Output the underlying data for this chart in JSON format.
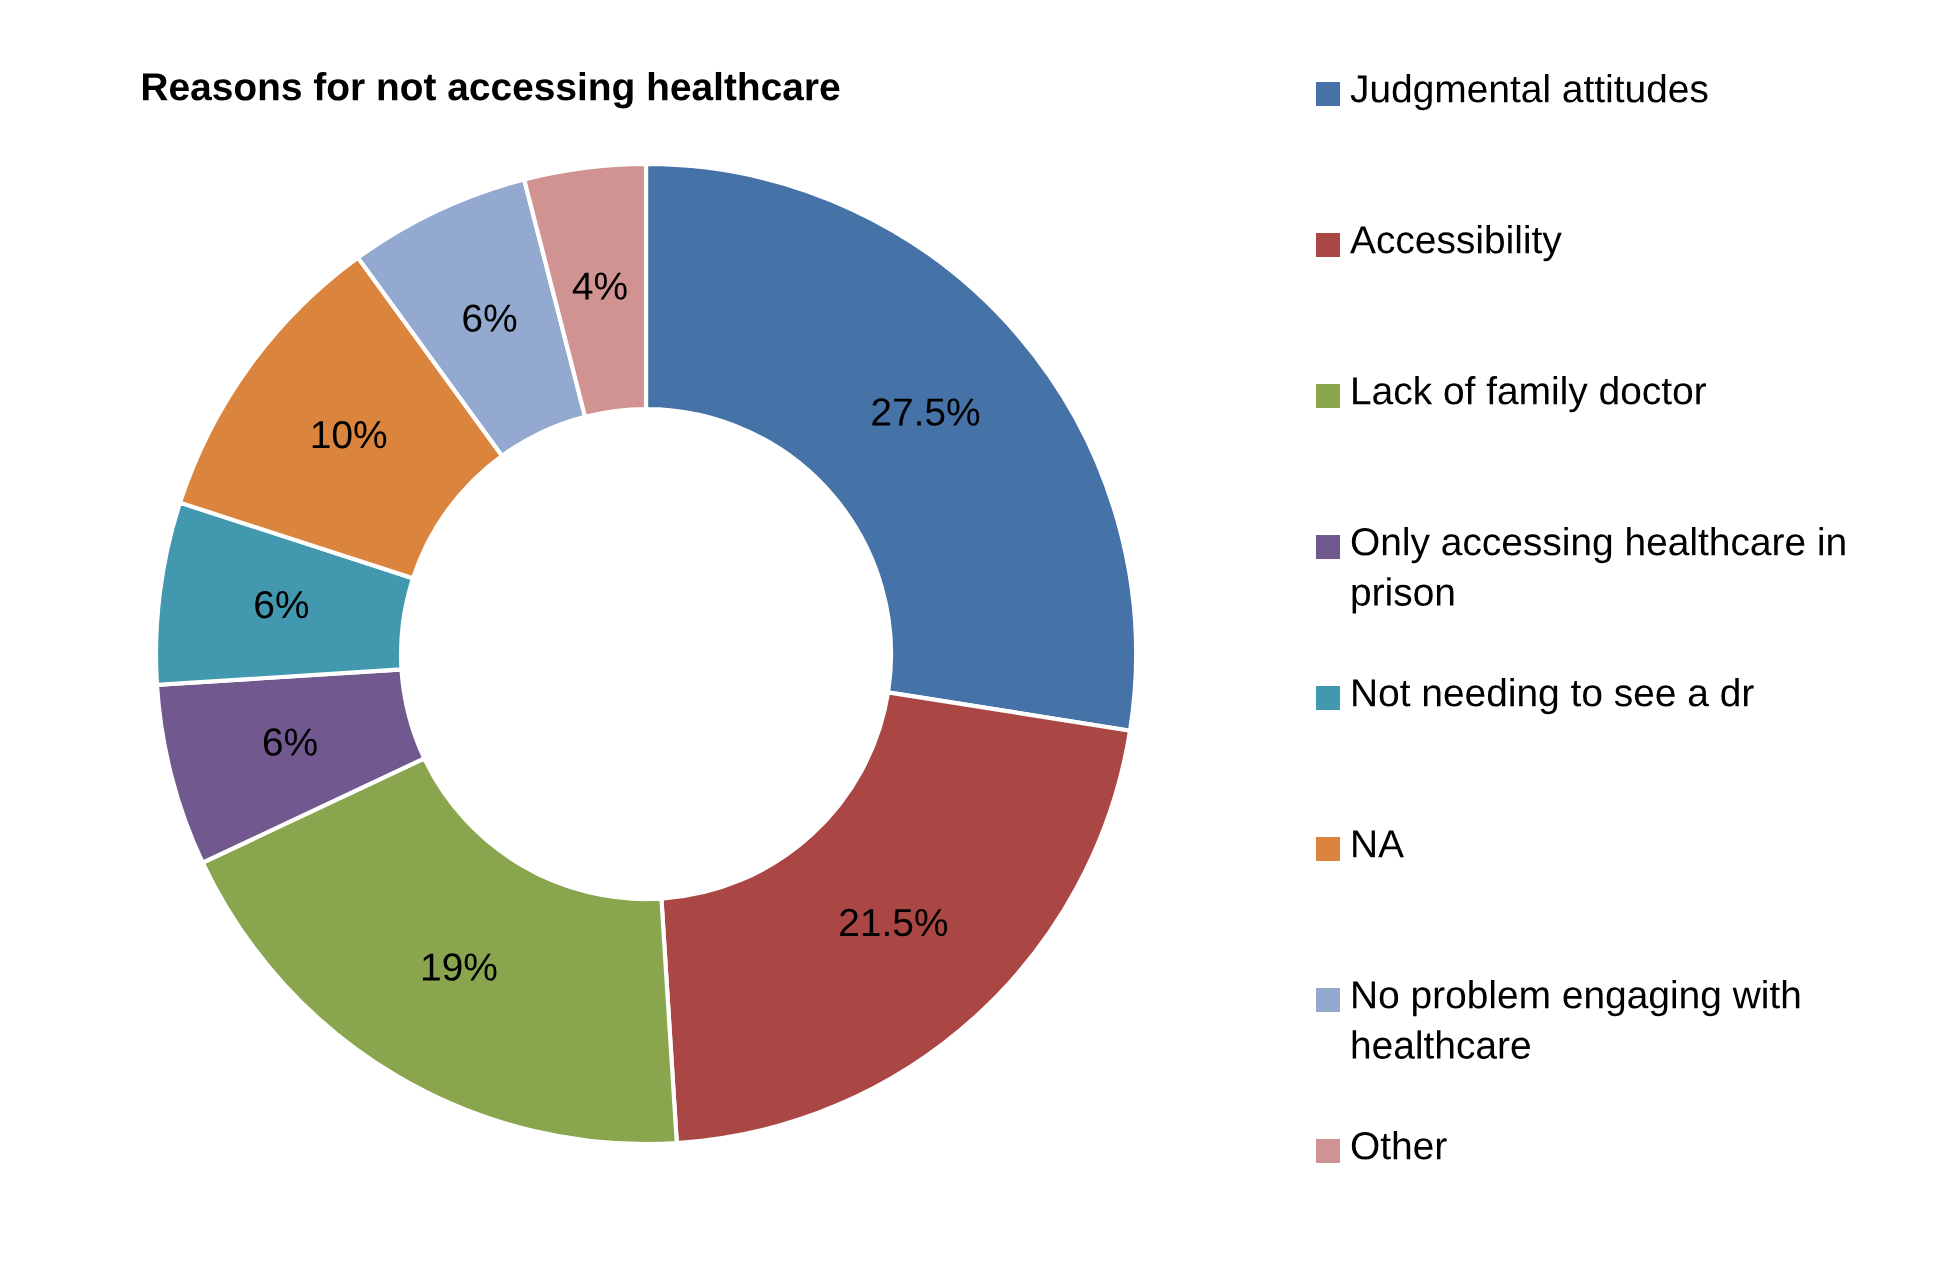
{
  "chart_data": {
    "type": "donut",
    "title": "Reasons for not accessing healthcare",
    "categories": [
      "Judgmental attitudes",
      "Accessibility",
      "Lack of family doctor",
      "Only accessing healthcare in prison",
      "Not needing to see a dr",
      "NA",
      "No problem engaging with healthcare",
      "Other"
    ],
    "values": [
      27.5,
      21.5,
      19,
      6,
      6,
      10,
      6,
      4
    ],
    "value_labels": [
      "27.5%",
      "21.5%",
      "19%",
      "6%",
      "6%",
      "10%",
      "6%",
      "4%"
    ],
    "colors": [
      "#4572a7",
      "#aa4643",
      "#89a54e",
      "#71588f",
      "#4198af",
      "#db843d",
      "#93a9cf",
      "#d19392"
    ],
    "legend": "right"
  }
}
